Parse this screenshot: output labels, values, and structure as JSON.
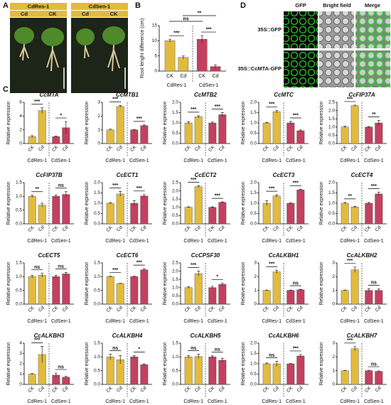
{
  "panel_labels": [
    "A",
    "B",
    "C",
    "D"
  ],
  "panel_a": {
    "groups": [
      {
        "label": "CdRes-1",
        "treatments": [
          "Cd",
          "CK"
        ]
      },
      {
        "label": "CdSen-1",
        "treatments": [
          "Cd",
          "CK"
        ]
      }
    ]
  },
  "panel_d": {
    "columns": [
      "GFP",
      "Bright field",
      "Merge"
    ],
    "rows": [
      "35S::GFP",
      "35S::CcMTA-GFP"
    ]
  },
  "chart_data": [
    {
      "type": "bar",
      "y_label": "Root lenght difference (cm)",
      "categories": [
        "CK",
        "Cd",
        "CK",
        "Cd"
      ],
      "groups": [
        {
          "name": "CdRes-1",
          "color": "#e2bb3c"
        },
        {
          "name": "CdSen-1",
          "color": "#c4405f"
        }
      ],
      "values": [
        10,
        4.5,
        10.5,
        1.5
      ],
      "errors": [
        0.5,
        0.5,
        1.2,
        0.6
      ],
      "ylim": [
        0,
        15
      ],
      "yticks": [
        0,
        5,
        10,
        15
      ],
      "significance": [
        "***",
        "***",
        "ns",
        "**"
      ]
    },
    {
      "type": "bar",
      "title": "CcMTA",
      "y_label": "Relative expression",
      "categories": [
        "CK",
        "Cd",
        "CK",
        "Cd"
      ],
      "groups": [
        {
          "name": "CdRes-1",
          "color": "#e2bb3c"
        },
        {
          "name": "CdSen-1",
          "color": "#c4405f"
        }
      ],
      "values": [
        1,
        4.8,
        1,
        2.3
      ],
      "errors": [
        0.15,
        0.4,
        0.1,
        0.9
      ],
      "ylim": [
        0,
        6
      ],
      "yticks": [
        0,
        2,
        4,
        6
      ],
      "significance": [
        "***",
        "*"
      ]
    },
    {
      "type": "bar",
      "title": "CcMTB1",
      "y_label": "Relative expression",
      "categories": [
        "CK",
        "Cd",
        "CK",
        "Cd"
      ],
      "groups": [
        {
          "name": "CdRes-1",
          "color": "#e2bb3c"
        },
        {
          "name": "CdSen-1",
          "color": "#c4405f"
        }
      ],
      "values": [
        1,
        2.7,
        1,
        1.3
      ],
      "errors": [
        0.05,
        0.08,
        0.03,
        0.05
      ],
      "ylim": [
        0,
        3
      ],
      "yticks": [
        0,
        1,
        2,
        3
      ],
      "significance": [
        "***",
        "***"
      ]
    },
    {
      "type": "bar",
      "title": "CcMTB2",
      "y_label": "Relative expression",
      "categories": [
        "CK",
        "Cd",
        "CK",
        "Cd"
      ],
      "groups": [
        {
          "name": "CdRes-1",
          "color": "#e2bb3c"
        },
        {
          "name": "CdSen-1",
          "color": "#c4405f"
        }
      ],
      "values": [
        1,
        1.3,
        1,
        1.4
      ],
      "errors": [
        0.07,
        0.05,
        0.05,
        0.1
      ],
      "ylim": [
        0,
        2
      ],
      "yticks": [
        {
          "value": 0,
          "label": "0.0"
        },
        0.5,
        {
          "value": 1,
          "label": "1.0"
        },
        1.5,
        {
          "value": 2,
          "label": "2.0"
        }
      ],
      "significance": [
        "***",
        "***"
      ]
    },
    {
      "type": "bar",
      "title": "CcMTC",
      "y_label": "Relative expression",
      "categories": [
        "CK",
        "Cd",
        "CK",
        "Cd"
      ],
      "groups": [
        {
          "name": "CdRes-1",
          "color": "#e2bb3c"
        },
        {
          "name": "CdSen-1",
          "color": "#c4405f"
        }
      ],
      "values": [
        1,
        1.55,
        1,
        0.62
      ],
      "errors": [
        0.03,
        0.06,
        0.07,
        0.04
      ],
      "ylim": [
        0,
        2
      ],
      "yticks": [
        {
          "value": 0,
          "label": "0.0"
        },
        0.5,
        {
          "value": 1,
          "label": "1.0"
        },
        1.5,
        {
          "value": 2,
          "label": "2.0"
        }
      ],
      "significance": [
        "***",
        "***"
      ]
    },
    {
      "type": "bar",
      "title": "CcFIP37A",
      "y_label": "Relative expression",
      "categories": [
        "CK",
        "Cd",
        "CK",
        "Cd"
      ],
      "groups": [
        {
          "name": "CdRes-1",
          "color": "#e2bb3c"
        },
        {
          "name": "CdSen-1",
          "color": "#c4405f"
        }
      ],
      "values": [
        1,
        2.3,
        1,
        1.25
      ],
      "errors": [
        0.05,
        0.03,
        0.03,
        0.15
      ],
      "ylim": [
        0,
        2.5
      ],
      "yticks": [
        {
          "value": 0,
          "label": "0.0"
        },
        0.5,
        {
          "value": 1,
          "label": "1.0"
        },
        1.5,
        {
          "value": 2,
          "label": "2.0"
        },
        2.5
      ],
      "significance": [
        "***",
        "**"
      ]
    },
    {
      "type": "bar",
      "title": "CcFIP37B",
      "y_label": "Relative expression",
      "categories": [
        "CK",
        "Cd",
        "CK",
        "Cd"
      ],
      "groups": [
        {
          "name": "CdRes-1",
          "color": "#e2bb3c"
        },
        {
          "name": "CdSen-1",
          "color": "#c4405f"
        }
      ],
      "values": [
        1,
        0.68,
        1,
        1.07
      ],
      "errors": [
        0.04,
        0.07,
        0.05,
        0.1
      ],
      "ylim": [
        0,
        1.5
      ],
      "yticks": [
        {
          "value": 0,
          "label": "0.0"
        },
        0.5,
        {
          "value": 1,
          "label": "1.0"
        },
        1.5
      ],
      "significance": [
        "**",
        "ns"
      ]
    },
    {
      "type": "bar",
      "title": "CcECT1",
      "y_label": "Relative expression",
      "categories": [
        "CK",
        "Cd",
        "CK",
        "Cd"
      ],
      "groups": [
        {
          "name": "CdRes-1",
          "color": "#e2bb3c"
        },
        {
          "name": "CdSen-1",
          "color": "#c4405f"
        }
      ],
      "values": [
        1,
        1.45,
        1,
        1.35
      ],
      "errors": [
        0.03,
        0.12,
        0.12,
        0.07
      ],
      "ylim": [
        0,
        2
      ],
      "yticks": [
        {
          "value": 0,
          "label": "0.0"
        },
        0.5,
        {
          "value": 1,
          "label": "1.0"
        },
        1.5,
        {
          "value": 2,
          "label": "2.0"
        }
      ],
      "significance": [
        "***",
        "***"
      ]
    },
    {
      "type": "bar",
      "title": "CcECT2",
      "y_label": "Relative expression",
      "categories": [
        "CK",
        "Cd",
        "CK",
        "Cd"
      ],
      "groups": [
        {
          "name": "CdRes-1",
          "color": "#e2bb3c"
        },
        {
          "name": "CdSen-1",
          "color": "#c4405f"
        }
      ],
      "values": [
        1,
        2.25,
        1,
        1.3
      ],
      "errors": [
        0.03,
        0.05,
        0.03,
        0.03
      ],
      "ylim": [
        0,
        2.5
      ],
      "yticks": [
        {
          "value": 0,
          "label": "0.0"
        },
        0.5,
        {
          "value": 1,
          "label": "1.0"
        },
        1.5,
        {
          "value": 2,
          "label": "2.0"
        },
        2.5
      ],
      "significance": [
        "***",
        "***"
      ]
    },
    {
      "type": "bar",
      "title": "CcECT3",
      "y_label": "Relative expression",
      "categories": [
        "CK",
        "Cd",
        "CK",
        "Cd"
      ],
      "groups": [
        {
          "name": "CdRes-1",
          "color": "#e2bb3c"
        },
        {
          "name": "CdSen-1",
          "color": "#c4405f"
        }
      ],
      "values": [
        1,
        1.35,
        1,
        1.65
      ],
      "errors": [
        0.12,
        0.06,
        0.02,
        0.03
      ],
      "ylim": [
        0,
        2
      ],
      "yticks": [
        {
          "value": 0,
          "label": "0.0"
        },
        0.5,
        {
          "value": 1,
          "label": "1.0"
        },
        1.5,
        {
          "value": 2,
          "label": "2.0"
        }
      ],
      "significance": [
        "***",
        "***"
      ]
    },
    {
      "type": "bar",
      "title": "CcECT4",
      "y_label": "Relative expression",
      "categories": [
        "CK",
        "Cd",
        "CK",
        "Cd"
      ],
      "groups": [
        {
          "name": "CdRes-1",
          "color": "#e2bb3c"
        },
        {
          "name": "CdSen-1",
          "color": "#c4405f"
        }
      ],
      "values": [
        1,
        0.82,
        1,
        1.45
      ],
      "errors": [
        0.04,
        0.03,
        0.04,
        0.08
      ],
      "ylim": [
        0,
        2
      ],
      "yticks": [
        {
          "value": 0,
          "label": "0.0"
        },
        0.5,
        {
          "value": 1,
          "label": "1.0"
        },
        1.5,
        {
          "value": 2,
          "label": "2.0"
        }
      ],
      "significance": [
        "**",
        "***"
      ]
    },
    {
      "type": "bar",
      "title": "CcECT5",
      "y_label": "Relative expression",
      "categories": [
        "CK",
        "Cd",
        "CK",
        "Cd"
      ],
      "groups": [
        {
          "name": "CdRes-1",
          "color": "#e2bb3c"
        },
        {
          "name": "CdSen-1",
          "color": "#c4405f"
        }
      ],
      "values": [
        1,
        1.05,
        1,
        1.1
      ],
      "errors": [
        0.05,
        0.07,
        0.05,
        0.05
      ],
      "ylim": [
        0,
        1.5
      ],
      "yticks": [
        {
          "value": 0,
          "label": "0.0"
        },
        0.5,
        {
          "value": 1,
          "label": "1.0"
        },
        1.5
      ],
      "significance": [
        "ns",
        "ns"
      ]
    },
    {
      "type": "bar",
      "title": "CcECT6",
      "y_label": "Relative expression",
      "categories": [
        "CK",
        "Cd",
        "CK",
        "Cd"
      ],
      "groups": [
        {
          "name": "CdRes-1",
          "color": "#e2bb3c"
        },
        {
          "name": "CdSen-1",
          "color": "#c4405f"
        }
      ],
      "values": [
        1,
        0.75,
        1,
        1.25
      ],
      "errors": [
        0.02,
        0.01,
        0.02,
        0.04
      ],
      "ylim": [
        0,
        1.5
      ],
      "yticks": [
        {
          "value": 0,
          "label": "0.0"
        },
        0.5,
        {
          "value": 1,
          "label": "1.0"
        },
        1.5
      ],
      "significance": [
        "***",
        "***"
      ]
    },
    {
      "type": "bar",
      "title": "CcCPSF30",
      "y_label": "Relative expression",
      "categories": [
        "CK",
        "Cd",
        "CK",
        "Cd"
      ],
      "groups": [
        {
          "name": "CdRes-1",
          "color": "#e2bb3c"
        },
        {
          "name": "CdSen-1",
          "color": "#c4405f"
        }
      ],
      "values": [
        1,
        1.85,
        1,
        1.2
      ],
      "errors": [
        0.05,
        0.15,
        0.08,
        0.08
      ],
      "ylim": [
        0,
        2.5
      ],
      "yticks": [
        {
          "value": 0,
          "label": "0.0"
        },
        0.5,
        {
          "value": 1,
          "label": "1.0"
        },
        1.5,
        {
          "value": 2,
          "label": "2.0"
        },
        2.5
      ],
      "significance": [
        "***",
        "*"
      ]
    },
    {
      "type": "bar",
      "title": "CcALKBH1",
      "y_label": "Relative expression",
      "categories": [
        "CK",
        "Cd",
        "CK",
        "Cd"
      ],
      "groups": [
        {
          "name": "CdRes-1",
          "color": "#e2bb3c"
        },
        {
          "name": "CdSen-1",
          "color": "#c4405f"
        }
      ],
      "values": [
        1,
        2.35,
        1,
        1.05
      ],
      "errors": [
        0.02,
        0.12,
        0.02,
        0.03
      ],
      "ylim": [
        0,
        3
      ],
      "yticks": [
        0,
        1,
        2,
        3
      ],
      "significance": [
        "***",
        "ns"
      ]
    },
    {
      "type": "bar",
      "title": "CcALKBH2",
      "y_label": "Relative expression",
      "categories": [
        "CK",
        "Cd",
        "CK",
        "Cd"
      ],
      "groups": [
        {
          "name": "CdRes-1",
          "color": "#e2bb3c"
        },
        {
          "name": "CdSen-1",
          "color": "#c4405f"
        }
      ],
      "values": [
        1,
        2.5,
        1,
        1
      ],
      "errors": [
        0.02,
        0.2,
        0.12,
        0.1
      ],
      "ylim": [
        0,
        3
      ],
      "yticks": [
        0,
        1,
        2,
        3
      ],
      "significance": [
        "***",
        "ns"
      ]
    },
    {
      "type": "bar",
      "title": "CcALKBH3",
      "y_label": "Relative expression",
      "categories": [
        "CK",
        "Cd",
        "CK",
        "Cd"
      ],
      "groups": [
        {
          "name": "CdRes-1",
          "color": "#e2bb3c"
        },
        {
          "name": "CdSen-1",
          "color": "#c4405f"
        }
      ],
      "values": [
        1,
        2.9,
        0.9,
        0.7
      ],
      "errors": [
        0.05,
        0.8,
        0.2,
        0.08
      ],
      "ylim": [
        0,
        4
      ],
      "yticks": [
        0,
        1,
        2,
        3,
        4
      ],
      "significance": [
        "***",
        "ns"
      ]
    },
    {
      "type": "bar",
      "title": "CcALKBH4",
      "y_label": "Relative expression",
      "categories": [
        "CK",
        "Cd",
        "CK",
        "Cd"
      ],
      "groups": [
        {
          "name": "CdRes-1",
          "color": "#e2bb3c"
        },
        {
          "name": "CdSen-1",
          "color": "#c4405f"
        }
      ],
      "values": [
        1,
        0.9,
        1,
        0.72
      ],
      "errors": [
        0.1,
        0.15,
        0.05,
        0.03
      ],
      "ylim": [
        0,
        1.5
      ],
      "yticks": [
        {
          "value": 0,
          "label": "0.0"
        },
        0.5,
        {
          "value": 1,
          "label": "1.0"
        },
        1.5
      ],
      "significance": [
        "ns",
        "*"
      ]
    },
    {
      "type": "bar",
      "title": "CcALKBH5",
      "y_label": "Relative expression",
      "categories": [
        "CK",
        "Cd",
        "CK",
        "Cd"
      ],
      "groups": [
        {
          "name": "CdRes-1",
          "color": "#e2bb3c"
        },
        {
          "name": "CdSen-1",
          "color": "#c4405f"
        }
      ],
      "values": [
        1,
        1.02,
        1,
        0.88
      ],
      "errors": [
        0.05,
        0.08,
        0.04,
        0.07
      ],
      "ylim": [
        0,
        1.5
      ],
      "yticks": [
        {
          "value": 0,
          "label": "0.0"
        },
        0.5,
        {
          "value": 1,
          "label": "1.0"
        },
        1.5
      ],
      "significance": [
        "ns",
        "ns"
      ]
    },
    {
      "type": "bar",
      "title": "CcALKBH6",
      "y_label": "Relative expression",
      "categories": [
        "CK",
        "Cd",
        "CK",
        "Cd"
      ],
      "groups": [
        {
          "name": "CdRes-1",
          "color": "#e2bb3c"
        },
        {
          "name": "CdSen-1",
          "color": "#c4405f"
        }
      ],
      "values": [
        1,
        1,
        1,
        1.38
      ],
      "errors": [
        0.04,
        0.12,
        0.02,
        0.07
      ],
      "ylim": [
        0,
        2
      ],
      "yticks": [
        {
          "value": 0,
          "label": "0.0"
        },
        0.5,
        {
          "value": 1,
          "label": "1.0"
        },
        1.5,
        {
          "value": 2,
          "label": "2.0"
        }
      ],
      "significance": [
        "ns",
        "***"
      ]
    },
    {
      "type": "bar",
      "title": "CcALKBH7",
      "y_label": "Relative expression",
      "categories": [
        "CK",
        "Cd",
        "CK",
        "Cd"
      ],
      "groups": [
        {
          "name": "CdRes-1",
          "color": "#e2bb3c"
        },
        {
          "name": "CdSen-1",
          "color": "#c4405f"
        }
      ],
      "values": [
        1,
        2.6,
        1,
        0.95
      ],
      "errors": [
        0.02,
        0.15,
        0.03,
        0.03
      ],
      "ylim": [
        0,
        3
      ],
      "yticks": [
        0,
        1,
        2,
        3
      ],
      "significance": [
        "***",
        "ns"
      ]
    }
  ]
}
